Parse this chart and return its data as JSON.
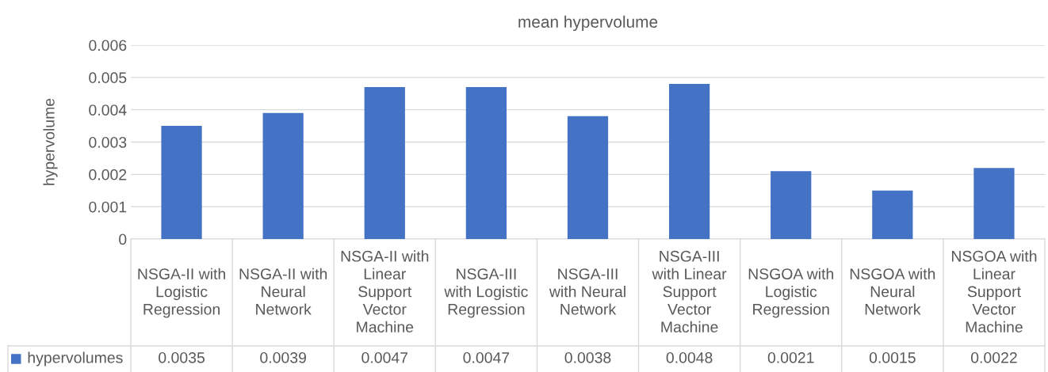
{
  "chart_data": {
    "type": "bar",
    "title": "mean hypervolume",
    "ylabel": "hypervolume",
    "categories": [
      "NSGA-II with\nLogistic\nRegression",
      "NSGA-II with\nNeural\nNetwork",
      "NSGA-II with\nLinear\nSupport\nVector\nMachine",
      "NSGA-III\nwith Logistic\nRegression",
      "NSGA-III\nwith Neural\nNetwork",
      "NSGA-III\nwith Linear\nSupport\nVector\nMachine",
      "NSGOA with\nLogistic\nRegression",
      "NSGOA with\nNeural\nNetwork",
      "NSGOA with\nLinear\nSupport\nVector\nMachine"
    ],
    "series": [
      {
        "name": "hypervolumes",
        "color": "#4472c4",
        "values": [
          0.0035,
          0.0039,
          0.0047,
          0.0047,
          0.0038,
          0.0048,
          0.0021,
          0.0015,
          0.0022
        ]
      }
    ],
    "ylim": [
      0,
      0.006
    ],
    "yticks": [
      0,
      0.001,
      0.002,
      0.003,
      0.004,
      0.005,
      0.006
    ],
    "grid": "y",
    "legend": "bottom",
    "data_labels": true
  }
}
